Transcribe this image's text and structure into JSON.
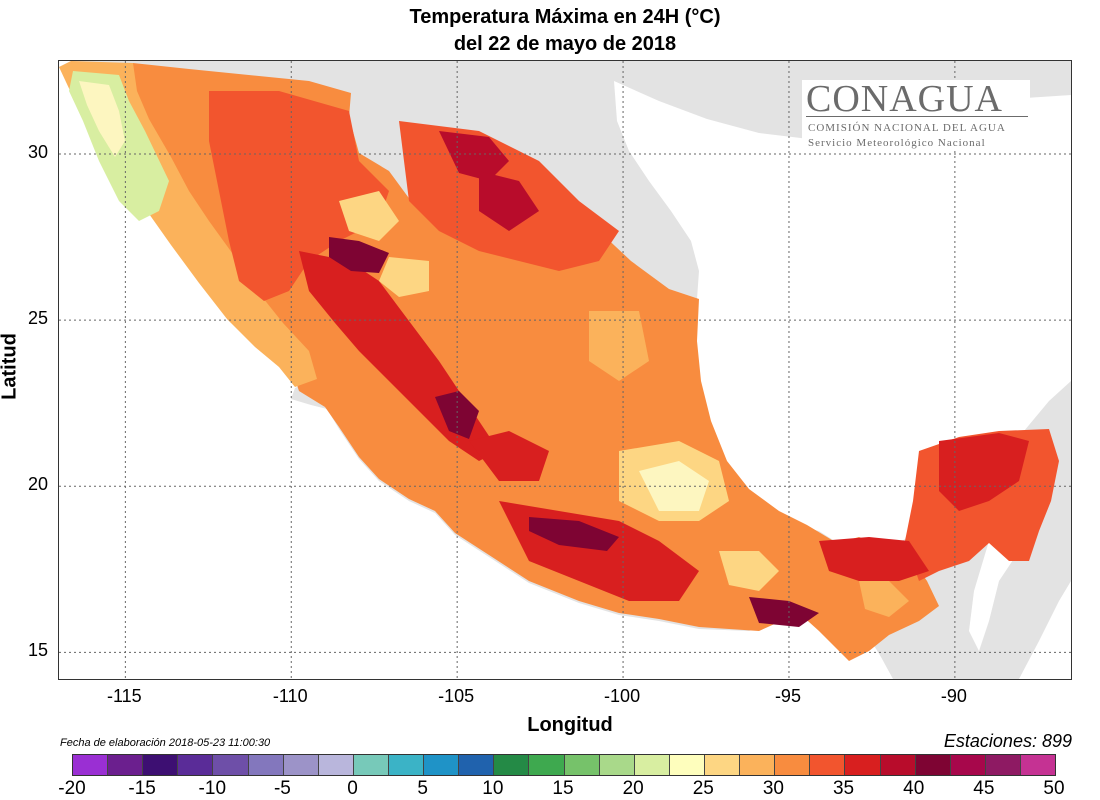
{
  "title": {
    "line1": "Temperatura Máxima en 24H (°C)",
    "line2": "del  22 de mayo de 2018"
  },
  "axes": {
    "xlabel": "Longitud",
    "ylabel": "Latitud",
    "x_ticks": [
      "-115",
      "-110",
      "-105",
      "-100",
      "-95",
      "-90"
    ],
    "y_ticks": [
      "30",
      "25",
      "20",
      "15"
    ],
    "x_range": [
      -117.0,
      -86.5
    ],
    "y_range": [
      14.2,
      32.8
    ]
  },
  "logo": {
    "name": "CONAGUA",
    "line1": "COMISIÓN NACIONAL DEL AGUA",
    "line2": "Servicio Meteorológico Nacional"
  },
  "footer": {
    "fecha": "Fecha de elaboración 2018-05-23 11:00:30",
    "estaciones": "Estaciones:  899"
  },
  "colorbar": {
    "labels": [
      "-20",
      "-15",
      "-10",
      "-5",
      "0",
      "5",
      "10",
      "15",
      "20",
      "25",
      "30",
      "35",
      "40",
      "45",
      "50"
    ],
    "colors": [
      "#9a2fd3",
      "#6b1f8e",
      "#3d0f72",
      "#5a2c98",
      "#6e4fa8",
      "#8377bd",
      "#9c93c8",
      "#b9b6dc",
      "#77c9b9",
      "#3bb3c6",
      "#1f93c7",
      "#2062ad",
      "#248a46",
      "#3ea94f",
      "#76c26a",
      "#a9d98a",
      "#d8eea1",
      "#fefebd",
      "#fdd683",
      "#fbb25b",
      "#f88c3f",
      "#f2552e",
      "#d81f1f",
      "#b80c2b",
      "#7e0433",
      "#a7074b",
      "#8e1a63",
      "#c53293"
    ]
  },
  "map": {
    "land_color": "#e3e3e3",
    "sea_color": "#ffffff",
    "temperature_colors": {
      "t24": "#fdf6c0",
      "t26": "#fdd683",
      "t28": "#fbb25b",
      "t30": "#f88c3f",
      "t33": "#f2552e",
      "t36": "#d81f1f",
      "t38": "#b80c2b",
      "t41": "#7e0433"
    }
  }
}
